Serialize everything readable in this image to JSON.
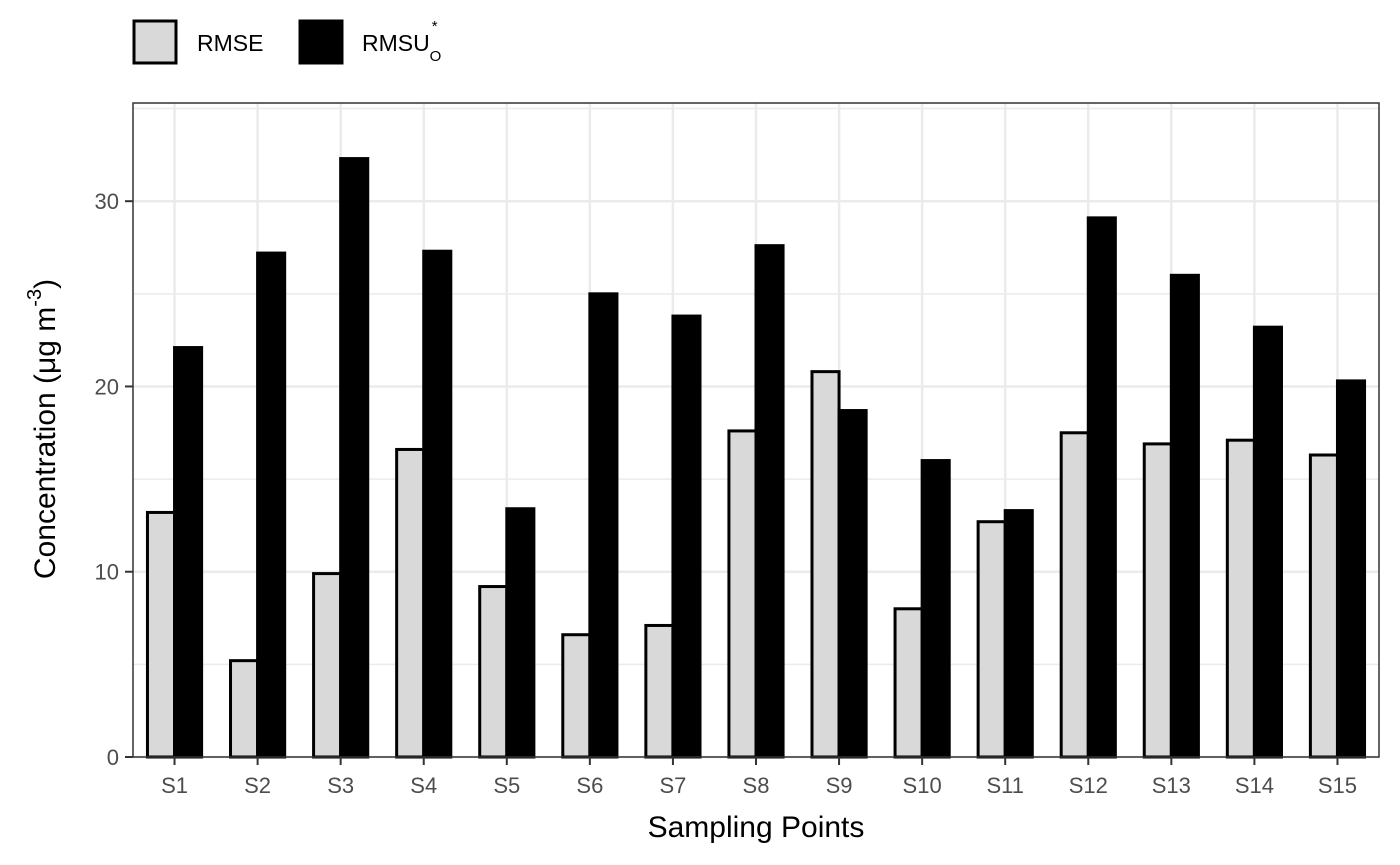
{
  "chart_data": {
    "type": "bar",
    "title": "",
    "xlabel": "Sampling Points",
    "ylabel_main": "Concentration (",
    "ylabel_unit": "μg m",
    "ylabel_exp": "-3",
    "ylabel_close": ")",
    "categories": [
      "S1",
      "S2",
      "S3",
      "S4",
      "S5",
      "S6",
      "S7",
      "S8",
      "S9",
      "S10",
      "S11",
      "S12",
      "S13",
      "S14",
      "S15"
    ],
    "series": [
      {
        "name": "RMSE",
        "color": "#d9d9d9",
        "values": [
          13.2,
          5.2,
          9.9,
          16.6,
          9.2,
          6.6,
          7.1,
          17.6,
          20.8,
          8.0,
          12.7,
          17.5,
          16.9,
          17.1,
          16.3
        ]
      },
      {
        "name": "RMSU",
        "name_sup": "*",
        "name_sub": "O",
        "color": "#000000",
        "values": [
          22.1,
          27.2,
          32.3,
          27.3,
          13.4,
          25.0,
          23.8,
          27.6,
          18.7,
          16.0,
          13.3,
          29.1,
          26.0,
          23.2,
          20.3
        ]
      }
    ],
    "ylim": [
      0,
      35.3
    ],
    "yticks": [
      0,
      10,
      20,
      30
    ],
    "grid": true,
    "legend_position": "top-left",
    "bar_outline_color": "#000000"
  }
}
